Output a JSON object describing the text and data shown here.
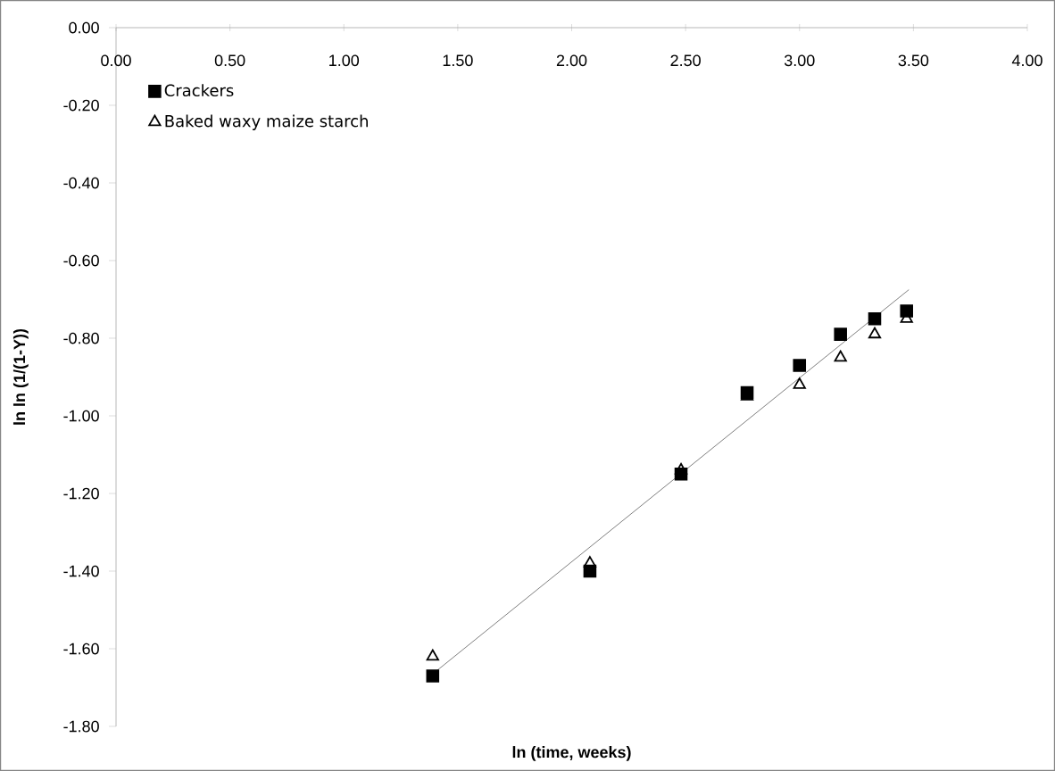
{
  "chart_data": {
    "type": "scatter",
    "xlabel": "ln (time, weeks)",
    "ylabel": "ln ln (1/(1-Y))",
    "x": [
      1.39,
      2.08,
      2.48,
      2.77,
      3.0,
      3.18,
      3.33,
      3.47
    ],
    "series": [
      {
        "name": "Crackers",
        "color": "#000000",
        "marker": "square",
        "values": [
          -1.67,
          -1.4,
          -1.15,
          -0.94,
          -0.87,
          -0.79,
          -0.75,
          -0.73
        ]
      },
      {
        "name": "Baked waxy maize starch",
        "color": "#000000",
        "marker": "triangle",
        "values": [
          -1.62,
          -1.38,
          -1.14,
          -0.95,
          -0.92,
          -0.85,
          -0.79,
          -0.75
        ]
      },
      {
        "type": "line",
        "color": "#808080",
        "marker": "none",
        "x": [
          1.39,
          3.48
        ],
        "values": [
          -1.665,
          -0.675
        ]
      }
    ],
    "xlim": [
      0,
      4
    ],
    "xticks": [
      {
        "value": 0,
        "label": "0.00"
      },
      {
        "value": 0.5,
        "label": "0.50"
      },
      {
        "value": 1,
        "label": "1.00"
      },
      {
        "value": 1.5,
        "label": "1.50"
      },
      {
        "value": 2,
        "label": "2.00"
      },
      {
        "value": 2.5,
        "label": "2.50"
      },
      {
        "value": 3,
        "label": "3.00"
      },
      {
        "value": 3.5,
        "label": "3.50"
      },
      {
        "value": 4,
        "label": "4.00"
      }
    ],
    "ylim": [
      -1.8,
      0
    ],
    "yticks": [
      {
        "value": 0,
        "label": "0.00"
      },
      {
        "value": -0.2,
        "label": "-0.20"
      },
      {
        "value": -0.4,
        "label": "-0.40"
      },
      {
        "value": -0.6,
        "label": "-0.60"
      },
      {
        "value": -0.8,
        "label": "-0.80"
      },
      {
        "value": -1.0,
        "label": "-1.00"
      },
      {
        "value": -1.2,
        "label": "-1.20"
      },
      {
        "value": -1.4,
        "label": "-1.40"
      },
      {
        "value": -1.6,
        "label": "-1.60"
      },
      {
        "value": -1.8,
        "label": "-1.80"
      }
    ],
    "grid": false,
    "legend": "top left"
  }
}
